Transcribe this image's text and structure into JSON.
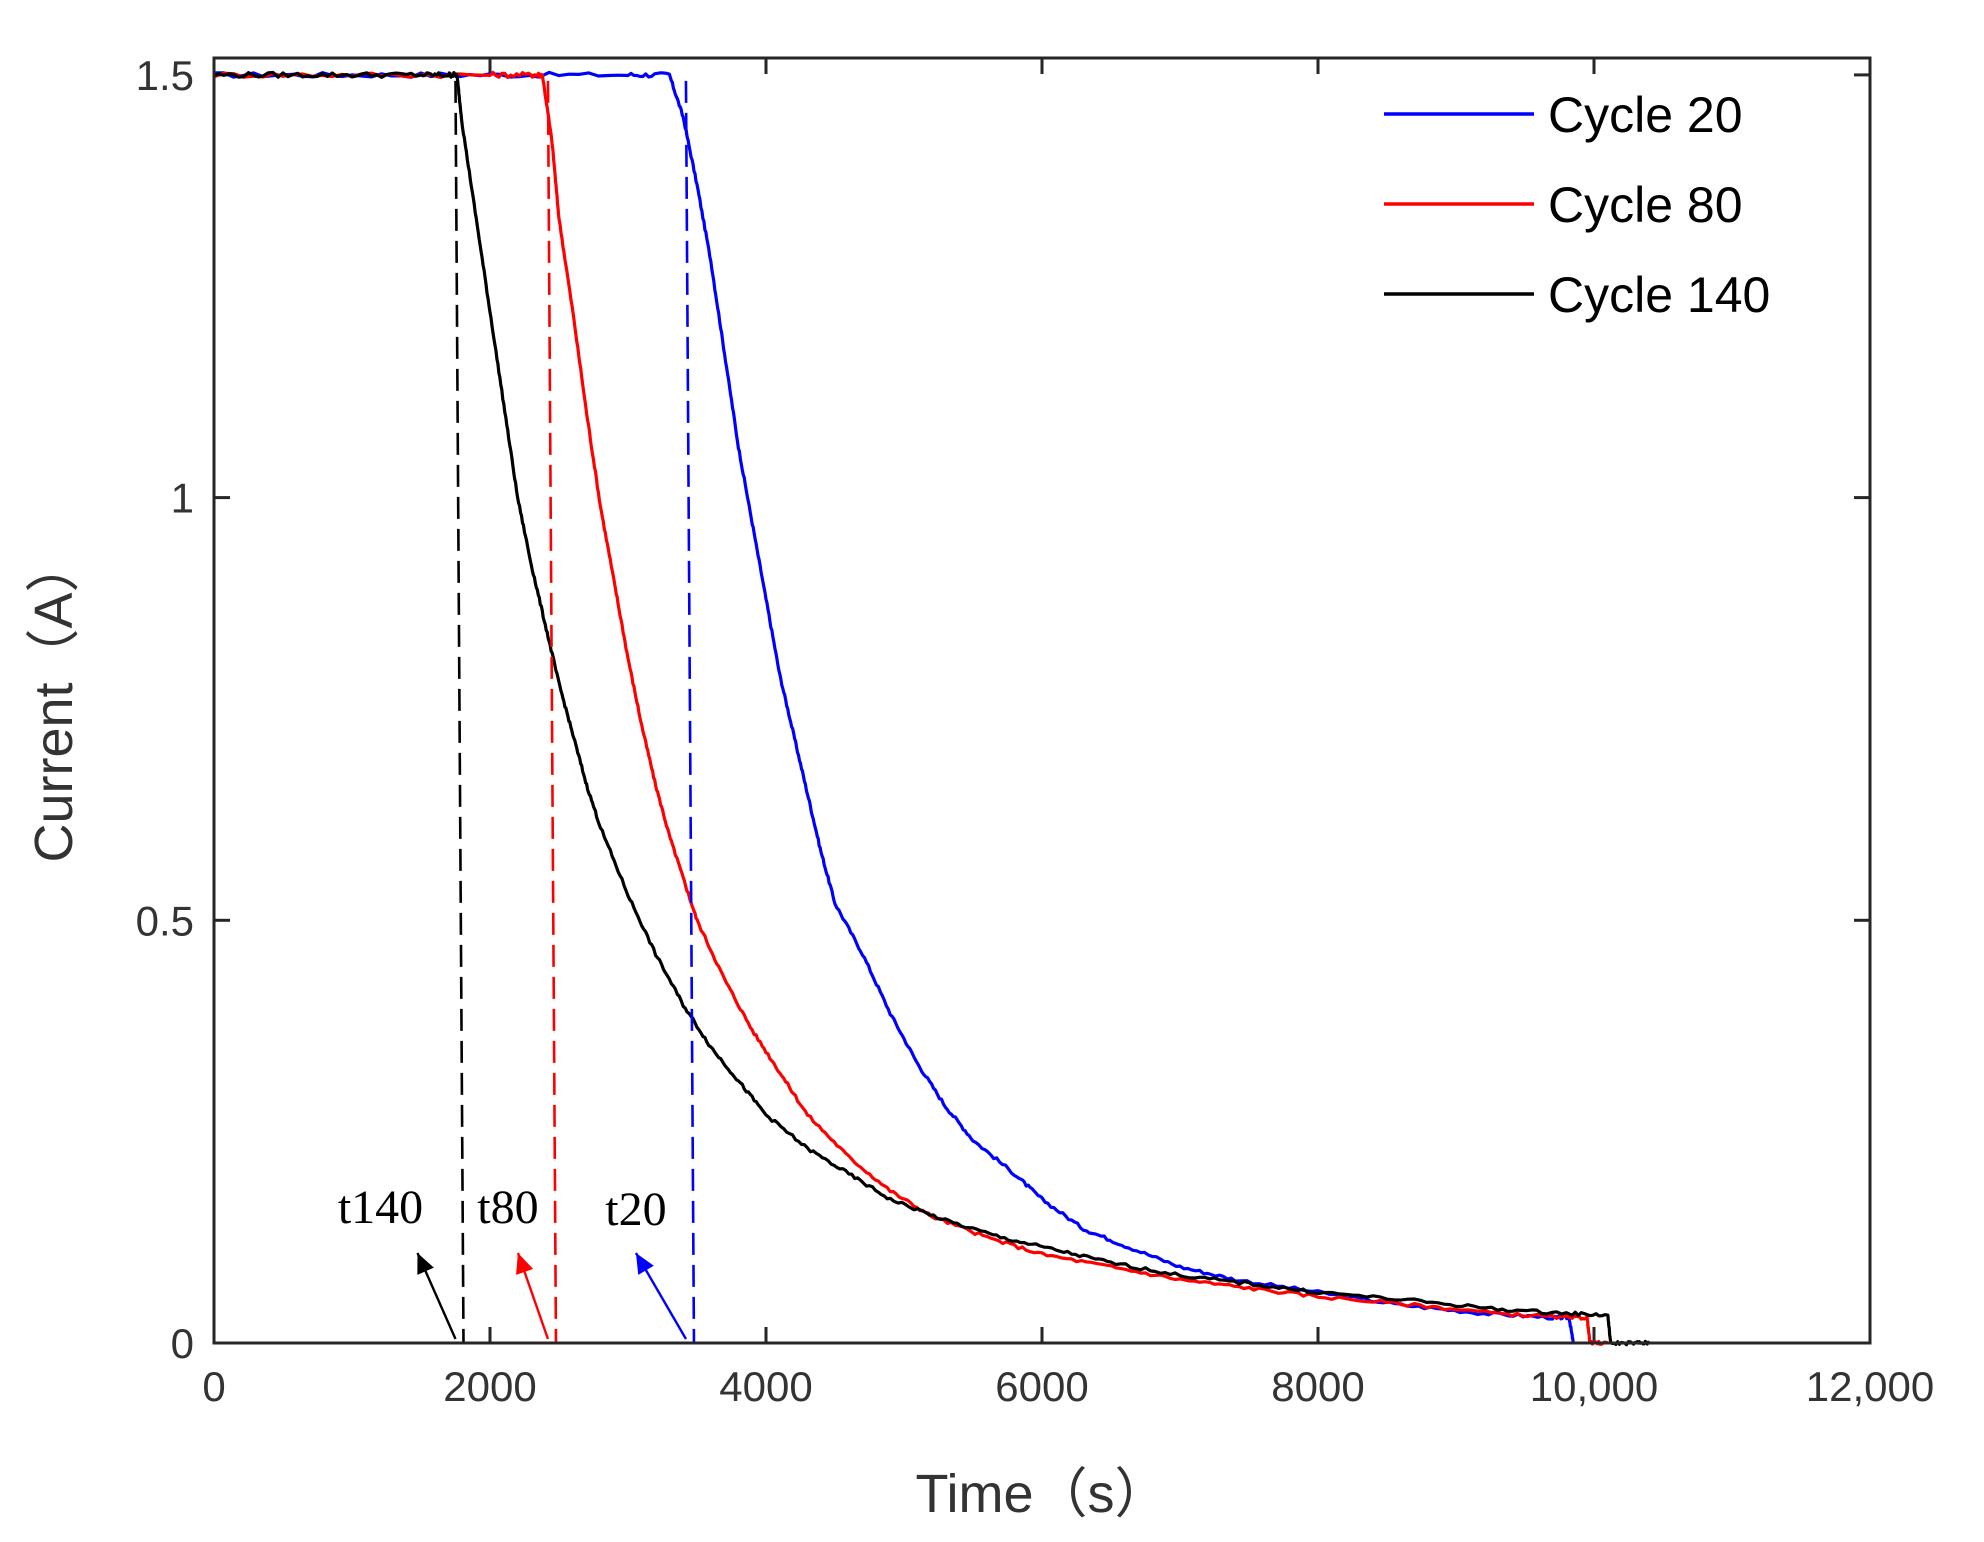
{
  "chart_data": {
    "type": "line",
    "title": "",
    "xlabel": "Time（s）",
    "ylabel": "Current（A）",
    "xlim": [
      0,
      12000
    ],
    "ylim": [
      0,
      1.52
    ],
    "x_ticks": [
      0,
      2000,
      4000,
      6000,
      8000,
      10000,
      12000
    ],
    "x_tick_labels": [
      "0",
      "2000",
      "4000",
      "6000",
      "8000",
      "10,000",
      "12,000"
    ],
    "y_ticks": [
      0,
      0.5,
      1,
      1.5
    ],
    "y_tick_labels": [
      "0",
      "0.5",
      "1",
      "1.5"
    ],
    "grid": false,
    "legend_position": "top-right",
    "series": [
      {
        "name": "Cycle 20",
        "color": "#0000ff",
        "x": [
          0,
          1000,
          2000,
          3000,
          3300,
          3400,
          3500,
          3600,
          3700,
          3800,
          3900,
          4000,
          4100,
          4200,
          4300,
          4400,
          4500,
          4700,
          4900,
          5100,
          5300,
          5500,
          5800,
          6000,
          6300,
          6600,
          7000,
          7400,
          8000,
          8600,
          9200,
          9700,
          9820,
          9850
        ],
        "y": [
          1.5,
          1.5,
          1.5,
          1.5,
          1.5,
          1.45,
          1.37,
          1.28,
          1.17,
          1.06,
          0.97,
          0.88,
          0.79,
          0.72,
          0.65,
          0.58,
          0.52,
          0.46,
          0.39,
          0.33,
          0.28,
          0.24,
          0.2,
          0.17,
          0.135,
          0.115,
          0.09,
          0.075,
          0.06,
          0.045,
          0.035,
          0.03,
          0.03,
          0
        ]
      },
      {
        "name": "Cycle 80",
        "color": "#ff0000",
        "x": [
          0,
          1000,
          2000,
          2300,
          2380,
          2450,
          2500,
          2600,
          2700,
          2800,
          2900,
          3000,
          3100,
          3200,
          3300,
          3400,
          3500,
          3700,
          3900,
          4100,
          4300,
          4600,
          4900,
          5200,
          5600,
          6000,
          6500,
          7000,
          7500,
          8000,
          8700,
          9300,
          9800,
          9950,
          9970,
          10100
        ],
        "y": [
          1.5,
          1.5,
          1.5,
          1.5,
          1.5,
          1.42,
          1.33,
          1.22,
          1.1,
          0.99,
          0.9,
          0.81,
          0.73,
          0.66,
          0.6,
          0.55,
          0.5,
          0.43,
          0.37,
          0.32,
          0.27,
          0.22,
          0.18,
          0.15,
          0.125,
          0.105,
          0.09,
          0.075,
          0.065,
          0.055,
          0.045,
          0.035,
          0.03,
          0.03,
          0,
          0
        ]
      },
      {
        "name": "Cycle 140",
        "color": "#000000",
        "x": [
          0,
          500,
          1000,
          1500,
          1700,
          1760,
          1800,
          1900,
          2000,
          2100,
          2200,
          2300,
          2400,
          2500,
          2600,
          2700,
          2800,
          3000,
          3200,
          3400,
          3600,
          3800,
          4000,
          4300,
          4600,
          4900,
          5300,
          5700,
          6100,
          6500,
          7000,
          7500,
          8000,
          8700,
          9300,
          9800,
          10100,
          10120,
          10300,
          10400
        ],
        "y": [
          1.5,
          1.5,
          1.5,
          1.5,
          1.5,
          1.5,
          1.44,
          1.33,
          1.22,
          1.11,
          1.0,
          0.92,
          0.85,
          0.78,
          0.72,
          0.66,
          0.61,
          0.53,
          0.46,
          0.4,
          0.35,
          0.31,
          0.27,
          0.23,
          0.2,
          0.17,
          0.145,
          0.125,
          0.11,
          0.095,
          0.08,
          0.07,
          0.06,
          0.05,
          0.04,
          0.035,
          0.033,
          0,
          0,
          0
        ]
      }
    ],
    "markers": [
      {
        "label": "t140",
        "x": 1750,
        "color": "#000000"
      },
      {
        "label": "t80",
        "x": 2420,
        "color": "#ff0000"
      },
      {
        "label": "t20",
        "x": 3420,
        "color": "#0000ff"
      }
    ]
  }
}
